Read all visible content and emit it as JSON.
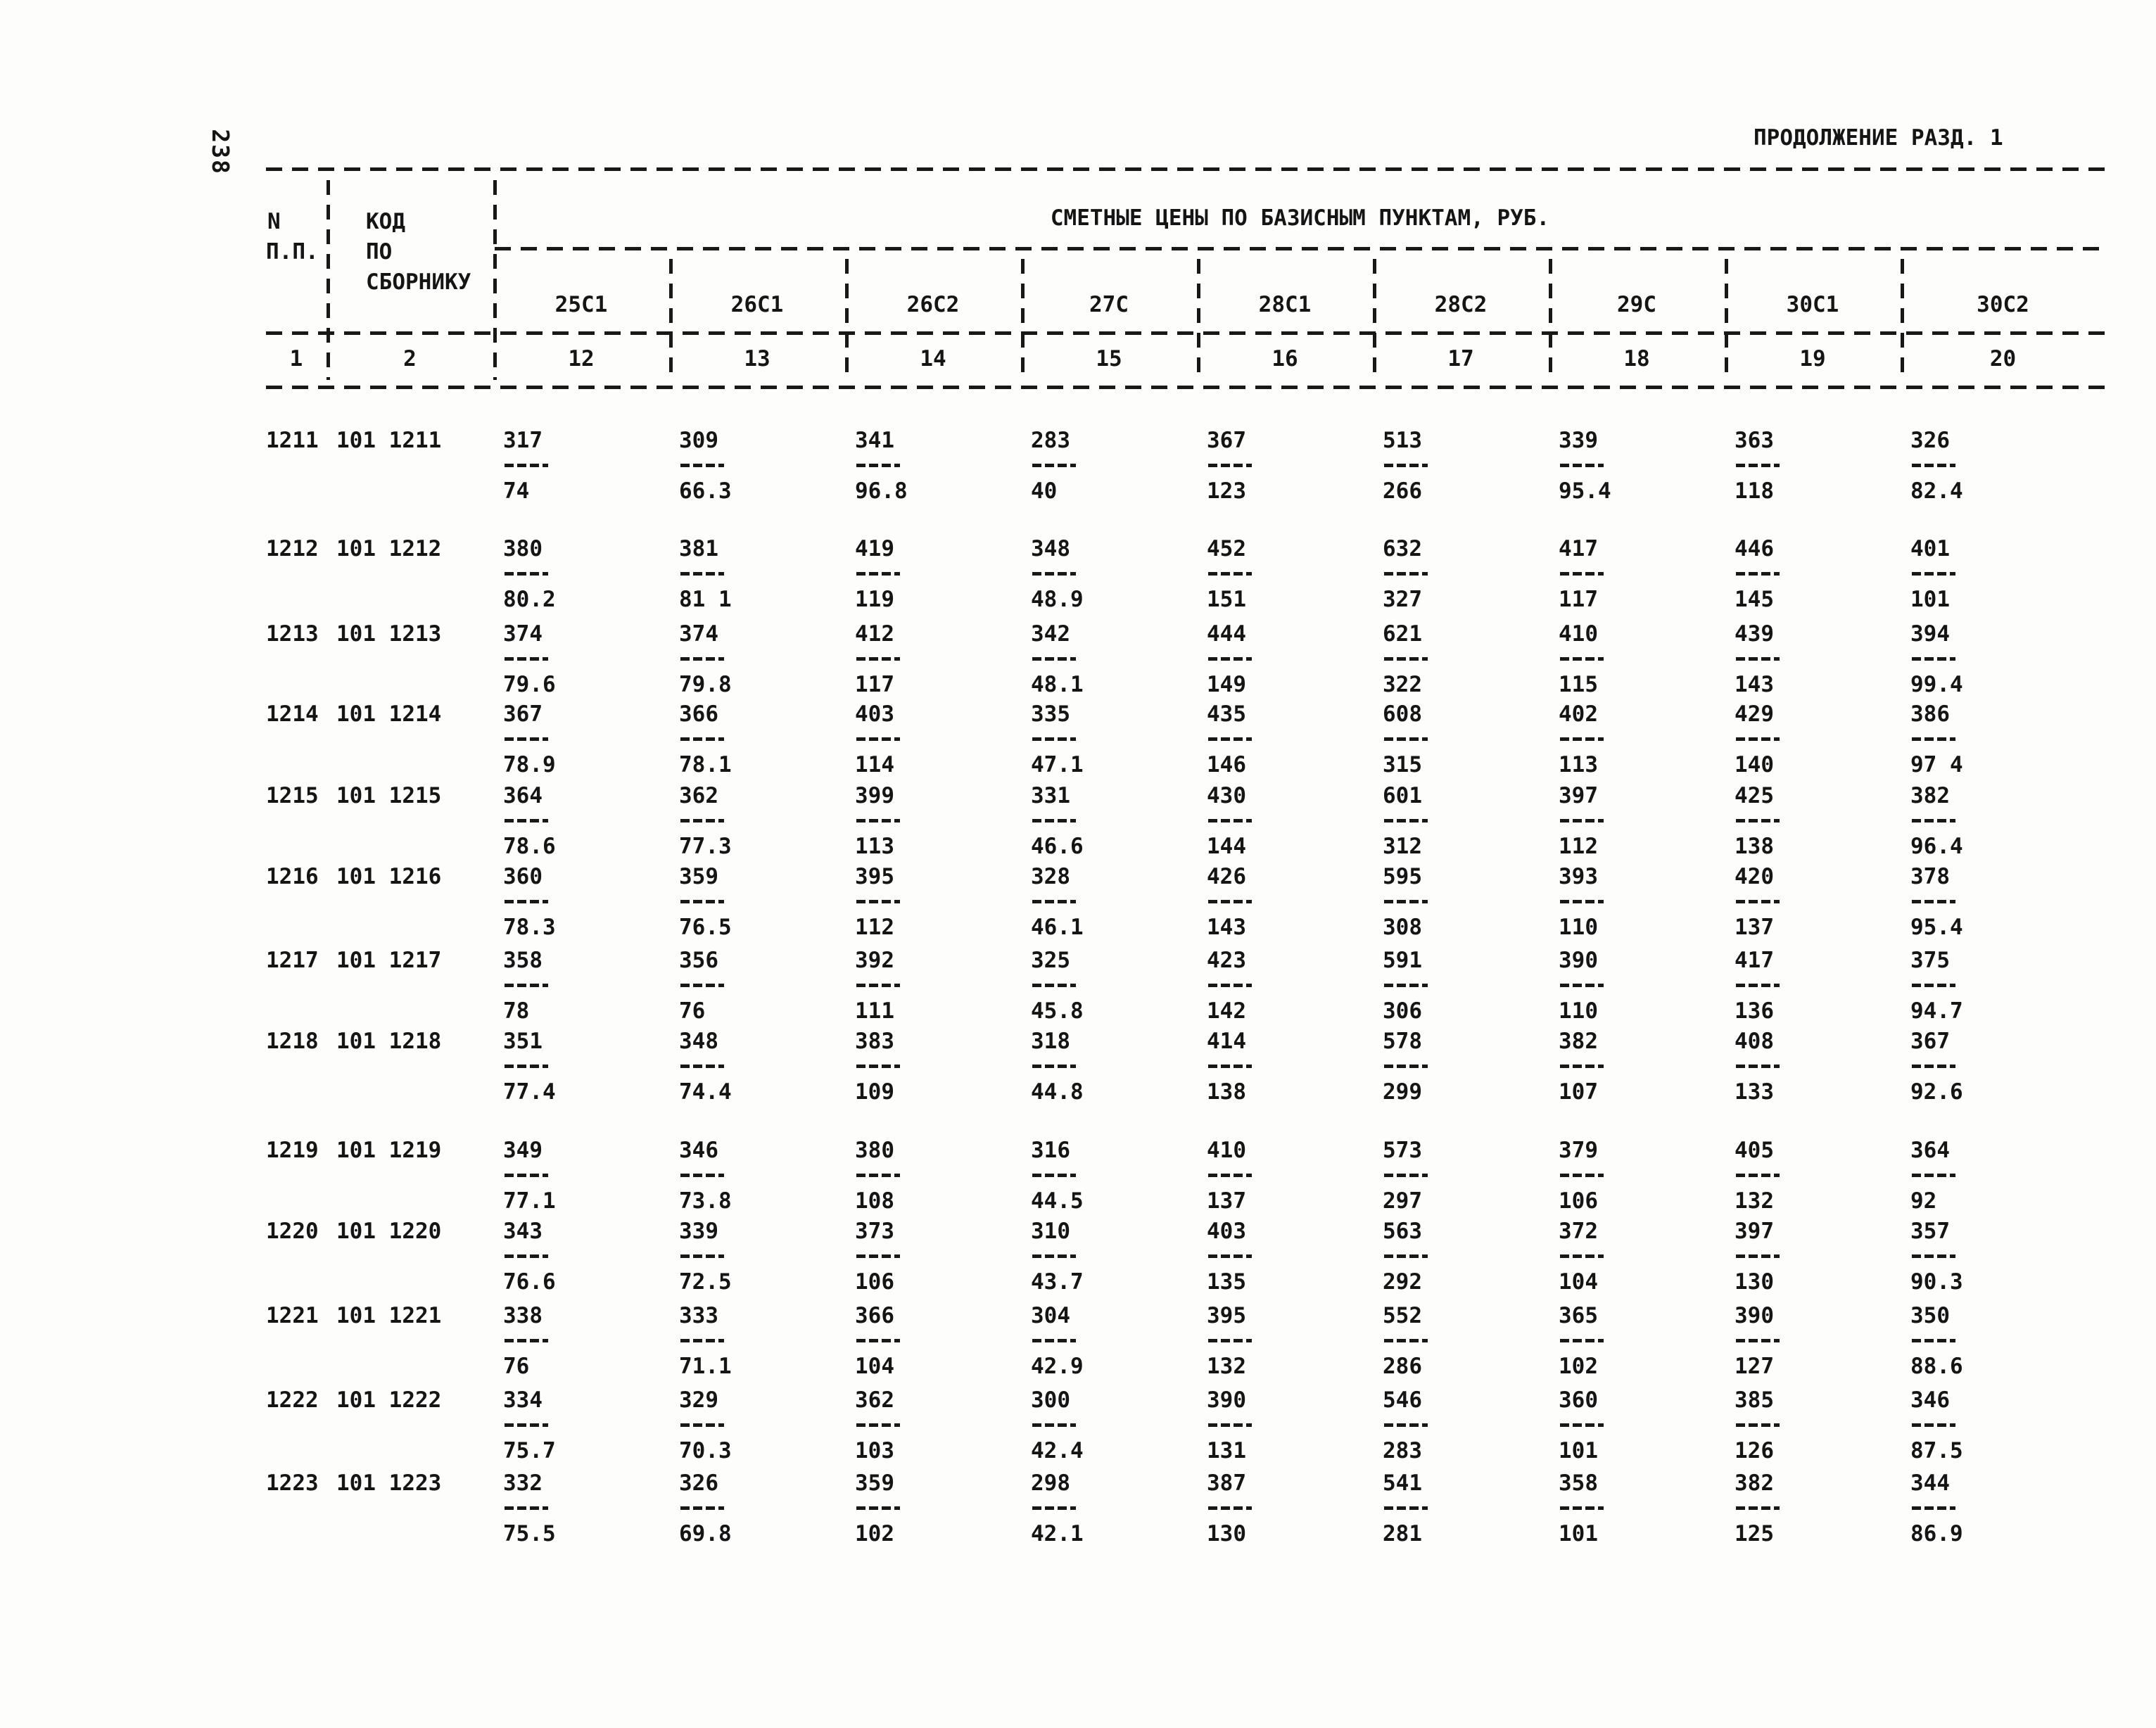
{
  "page": {
    "number": "238",
    "continuation": "ПРОДОЛЖЕНИЕ РАЗД. 1"
  },
  "table": {
    "title": "СМЕТНЫЕ ЦЕНЫ ПО БАЗИСНЫМ ПУНКТАМ, РУБ.",
    "head": {
      "col1_line1": "N",
      "col1_line2": "П.П.",
      "col2_line1": "КОД",
      "col2_line2": "ПО",
      "col2_line3": "СБОРНИКУ",
      "col1_num": "1",
      "col2_num": "2"
    },
    "columns": [
      {
        "label": "25С1",
        "num": "12"
      },
      {
        "label": "26С1",
        "num": "13"
      },
      {
        "label": "26С2",
        "num": "14"
      },
      {
        "label": "27С",
        "num": "15"
      },
      {
        "label": "28С1",
        "num": "16"
      },
      {
        "label": "28С2",
        "num": "17"
      },
      {
        "label": "29С",
        "num": "18"
      },
      {
        "label": "30С1",
        "num": "19"
      },
      {
        "label": "30С2",
        "num": "20"
      }
    ],
    "rows": [
      {
        "n": "1211",
        "code": "101 1211",
        "values": [
          {
            "top": "317",
            "bottom": "74"
          },
          {
            "top": "309",
            "bottom": "66.3"
          },
          {
            "top": "341",
            "bottom": "96.8"
          },
          {
            "top": "283",
            "bottom": "40"
          },
          {
            "top": "367",
            "bottom": "123"
          },
          {
            "top": "513",
            "bottom": "266"
          },
          {
            "top": "339",
            "bottom": "95.4"
          },
          {
            "top": "363",
            "bottom": "118"
          },
          {
            "top": "326",
            "bottom": "82.4"
          }
        ]
      },
      {
        "n": "1212",
        "code": "101 1212",
        "values": [
          {
            "top": "380",
            "bottom": "80.2"
          },
          {
            "top": "381",
            "bottom": "81 1"
          },
          {
            "top": "419",
            "bottom": "119"
          },
          {
            "top": "348",
            "bottom": "48.9"
          },
          {
            "top": "452",
            "bottom": "151"
          },
          {
            "top": "632",
            "bottom": "327"
          },
          {
            "top": "417",
            "bottom": "117"
          },
          {
            "top": "446",
            "bottom": "145"
          },
          {
            "top": "401",
            "bottom": "101"
          }
        ]
      },
      {
        "n": "1213",
        "code": "101 1213",
        "values": [
          {
            "top": "374",
            "bottom": "79.6"
          },
          {
            "top": "374",
            "bottom": "79.8"
          },
          {
            "top": "412",
            "bottom": "117"
          },
          {
            "top": "342",
            "bottom": "48.1"
          },
          {
            "top": "444",
            "bottom": "149"
          },
          {
            "top": "621",
            "bottom": "322"
          },
          {
            "top": "410",
            "bottom": "115"
          },
          {
            "top": "439",
            "bottom": "143"
          },
          {
            "top": "394",
            "bottom": "99.4"
          }
        ]
      },
      {
        "n": "1214",
        "code": "101 1214",
        "values": [
          {
            "top": "367",
            "bottom": "78.9"
          },
          {
            "top": "366",
            "bottom": "78.1"
          },
          {
            "top": "403",
            "bottom": "114"
          },
          {
            "top": "335",
            "bottom": "47.1"
          },
          {
            "top": "435",
            "bottom": "146"
          },
          {
            "top": "608",
            "bottom": "315"
          },
          {
            "top": "402",
            "bottom": "113"
          },
          {
            "top": "429",
            "bottom": "140"
          },
          {
            "top": "386",
            "bottom": "97 4"
          }
        ]
      },
      {
        "n": "1215",
        "code": "101 1215",
        "values": [
          {
            "top": "364",
            "bottom": "78.6"
          },
          {
            "top": "362",
            "bottom": "77.3"
          },
          {
            "top": "399",
            "bottom": "113"
          },
          {
            "top": "331",
            "bottom": "46.6"
          },
          {
            "top": "430",
            "bottom": "144"
          },
          {
            "top": "601",
            "bottom": "312"
          },
          {
            "top": "397",
            "bottom": "112"
          },
          {
            "top": "425",
            "bottom": "138"
          },
          {
            "top": "382",
            "bottom": "96.4"
          }
        ]
      },
      {
        "n": "1216",
        "code": "101 1216",
        "values": [
          {
            "top": "360",
            "bottom": "78.3"
          },
          {
            "top": "359",
            "bottom": "76.5"
          },
          {
            "top": "395",
            "bottom": "112"
          },
          {
            "top": "328",
            "bottom": "46.1"
          },
          {
            "top": "426",
            "bottom": "143"
          },
          {
            "top": "595",
            "bottom": "308"
          },
          {
            "top": "393",
            "bottom": "110"
          },
          {
            "top": "420",
            "bottom": "137"
          },
          {
            "top": "378",
            "bottom": "95.4"
          }
        ]
      },
      {
        "n": "1217",
        "code": "101 1217",
        "values": [
          {
            "top": "358",
            "bottom": "78"
          },
          {
            "top": "356",
            "bottom": "76"
          },
          {
            "top": "392",
            "bottom": "111"
          },
          {
            "top": "325",
            "bottom": "45.8"
          },
          {
            "top": "423",
            "bottom": "142"
          },
          {
            "top": "591",
            "bottom": "306"
          },
          {
            "top": "390",
            "bottom": "110"
          },
          {
            "top": "417",
            "bottom": "136"
          },
          {
            "top": "375",
            "bottom": "94.7"
          }
        ]
      },
      {
        "n": "1218",
        "code": "101 1218",
        "values": [
          {
            "top": "351",
            "bottom": "77.4"
          },
          {
            "top": "348",
            "bottom": "74.4"
          },
          {
            "top": "383",
            "bottom": "109"
          },
          {
            "top": "318",
            "bottom": "44.8"
          },
          {
            "top": "414",
            "bottom": "138"
          },
          {
            "top": "578",
            "bottom": "299"
          },
          {
            "top": "382",
            "bottom": "107"
          },
          {
            "top": "408",
            "bottom": "133"
          },
          {
            "top": "367",
            "bottom": "92.6"
          }
        ]
      },
      {
        "n": "1219",
        "code": "101 1219",
        "values": [
          {
            "top": "349",
            "bottom": "77.1"
          },
          {
            "top": "346",
            "bottom": "73.8"
          },
          {
            "top": "380",
            "bottom": "108"
          },
          {
            "top": "316",
            "bottom": "44.5"
          },
          {
            "top": "410",
            "bottom": "137"
          },
          {
            "top": "573",
            "bottom": "297"
          },
          {
            "top": "379",
            "bottom": "106"
          },
          {
            "top": "405",
            "bottom": "132"
          },
          {
            "top": "364",
            "bottom": "92"
          }
        ]
      },
      {
        "n": "1220",
        "code": "101 1220",
        "values": [
          {
            "top": "343",
            "bottom": "76.6"
          },
          {
            "top": "339",
            "bottom": "72.5"
          },
          {
            "top": "373",
            "bottom": "106"
          },
          {
            "top": "310",
            "bottom": "43.7"
          },
          {
            "top": "403",
            "bottom": "135"
          },
          {
            "top": "563",
            "bottom": "292"
          },
          {
            "top": "372",
            "bottom": "104"
          },
          {
            "top": "397",
            "bottom": "130"
          },
          {
            "top": "357",
            "bottom": "90.3"
          }
        ]
      },
      {
        "n": "1221",
        "code": "101 1221",
        "values": [
          {
            "top": "338",
            "bottom": "76"
          },
          {
            "top": "333",
            "bottom": "71.1"
          },
          {
            "top": "366",
            "bottom": "104"
          },
          {
            "top": "304",
            "bottom": "42.9"
          },
          {
            "top": "395",
            "bottom": "132"
          },
          {
            "top": "552",
            "bottom": "286"
          },
          {
            "top": "365",
            "bottom": "102"
          },
          {
            "top": "390",
            "bottom": "127"
          },
          {
            "top": "350",
            "bottom": "88.6"
          }
        ]
      },
      {
        "n": "1222",
        "code": "101 1222",
        "values": [
          {
            "top": "334",
            "bottom": "75.7"
          },
          {
            "top": "329",
            "bottom": "70.3"
          },
          {
            "top": "362",
            "bottom": "103"
          },
          {
            "top": "300",
            "bottom": "42.4"
          },
          {
            "top": "390",
            "bottom": "131"
          },
          {
            "top": "546",
            "bottom": "283"
          },
          {
            "top": "360",
            "bottom": "101"
          },
          {
            "top": "385",
            "bottom": "126"
          },
          {
            "top": "346",
            "bottom": "87.5"
          }
        ]
      },
      {
        "n": "1223",
        "code": "101 1223",
        "values": [
          {
            "top": "332",
            "bottom": "75.5"
          },
          {
            "top": "326",
            "bottom": "69.8"
          },
          {
            "top": "359",
            "bottom": "102"
          },
          {
            "top": "298",
            "bottom": "42.1"
          },
          {
            "top": "387",
            "bottom": "130"
          },
          {
            "top": "541",
            "bottom": "281"
          },
          {
            "top": "358",
            "bottom": "101"
          },
          {
            "top": "382",
            "bottom": "125"
          },
          {
            "top": "344",
            "bottom": "86.9"
          }
        ]
      }
    ]
  }
}
